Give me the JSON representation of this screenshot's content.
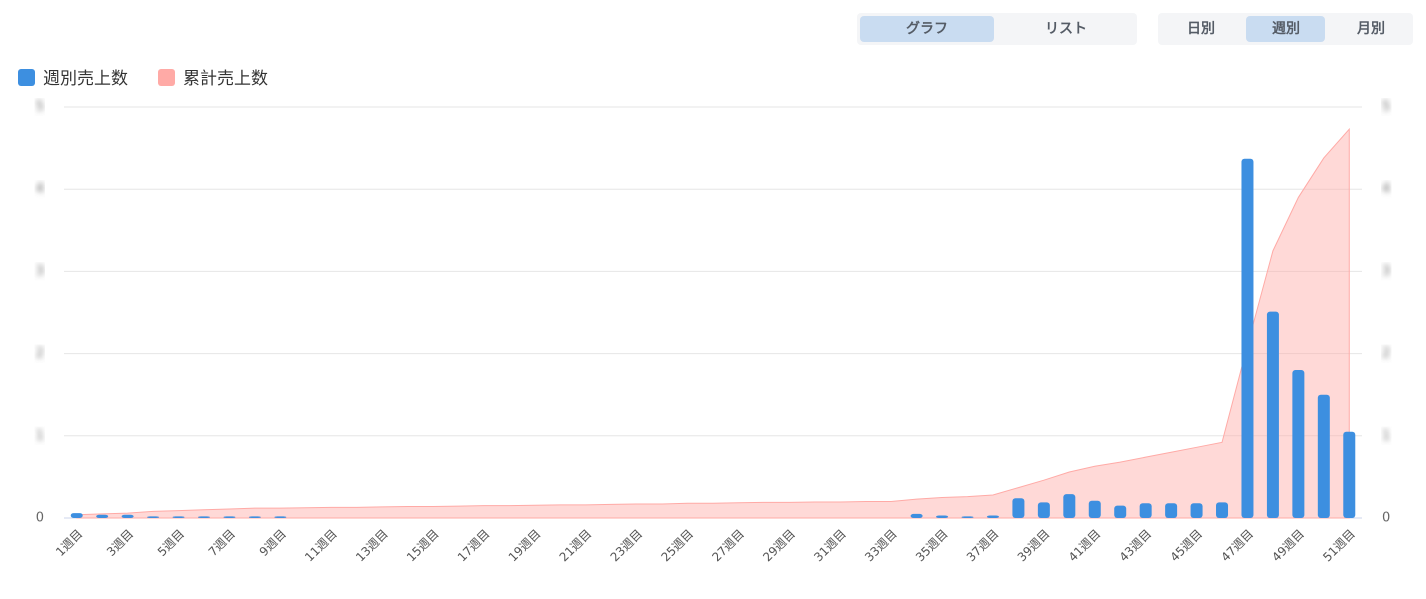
{
  "controls": {
    "view": [
      "グラフ",
      "リスト"
    ],
    "period": [
      "日別",
      "週別",
      "月別"
    ]
  },
  "chart_data": {
    "type": "bar",
    "categories": [
      "1週目",
      null,
      "3週目",
      null,
      "5週目",
      null,
      "7週目",
      null,
      "9週目",
      null,
      "11週目",
      null,
      "13週目",
      null,
      "15週目",
      null,
      "17週目",
      null,
      "19週目",
      null,
      "21週目",
      null,
      "23週目",
      null,
      "25週目",
      null,
      "27週目",
      null,
      "29週目",
      null,
      "31週目",
      null,
      "33週目",
      null,
      "35週目",
      null,
      "37週目",
      null,
      "39週目",
      null,
      "41週目",
      null,
      "43週目",
      null,
      "45週目",
      null,
      "47週目",
      null,
      "49週目",
      null,
      "51週目"
    ],
    "series": [
      {
        "name": "週別売上数",
        "color": "#3d8fe0",
        "type": "bar",
        "values": [
          0.06,
          0.04,
          0.04,
          0.02,
          0.02,
          0.02,
          0.02,
          0.02,
          0.02,
          0,
          0,
          0,
          0,
          0,
          0,
          0,
          0,
          0,
          0,
          0,
          0,
          0,
          0,
          0,
          0,
          0,
          0,
          0,
          0,
          0,
          0,
          0,
          0,
          0.05,
          0.03,
          0.02,
          0.03,
          0.24,
          0.19,
          0.29,
          0.21,
          0.15,
          0.18,
          0.18,
          0.18,
          0.19,
          4.37,
          2.51,
          1.8,
          1.5,
          1.05
        ]
      },
      {
        "name": "累計売上数",
        "color": "#ffaaa6",
        "type": "area",
        "axis": "y2",
        "values": [
          0.04,
          0.05,
          0.06,
          0.08,
          0.09,
          0.1,
          0.11,
          0.12,
          0.12,
          0.125,
          0.13,
          0.13,
          0.135,
          0.14,
          0.14,
          0.145,
          0.15,
          0.15,
          0.155,
          0.16,
          0.16,
          0.165,
          0.17,
          0.17,
          0.18,
          0.18,
          0.185,
          0.19,
          0.19,
          0.195,
          0.195,
          0.2,
          0.2,
          0.23,
          0.25,
          0.26,
          0.28,
          0.37,
          0.46,
          0.56,
          0.63,
          0.68,
          0.74,
          0.8,
          0.86,
          0.92,
          2.1,
          3.25,
          3.9,
          4.38,
          4.73
        ]
      }
    ],
    "ylim": [
      0,
      5
    ],
    "yticks": [
      0,
      1,
      2,
      3,
      4,
      5
    ],
    "y2lim": [
      0,
      5
    ],
    "y2ticks": [
      0,
      1,
      2,
      3,
      4,
      5
    ],
    "grid": true,
    "blurred_tick_labels": true,
    "legend": "top-left"
  }
}
